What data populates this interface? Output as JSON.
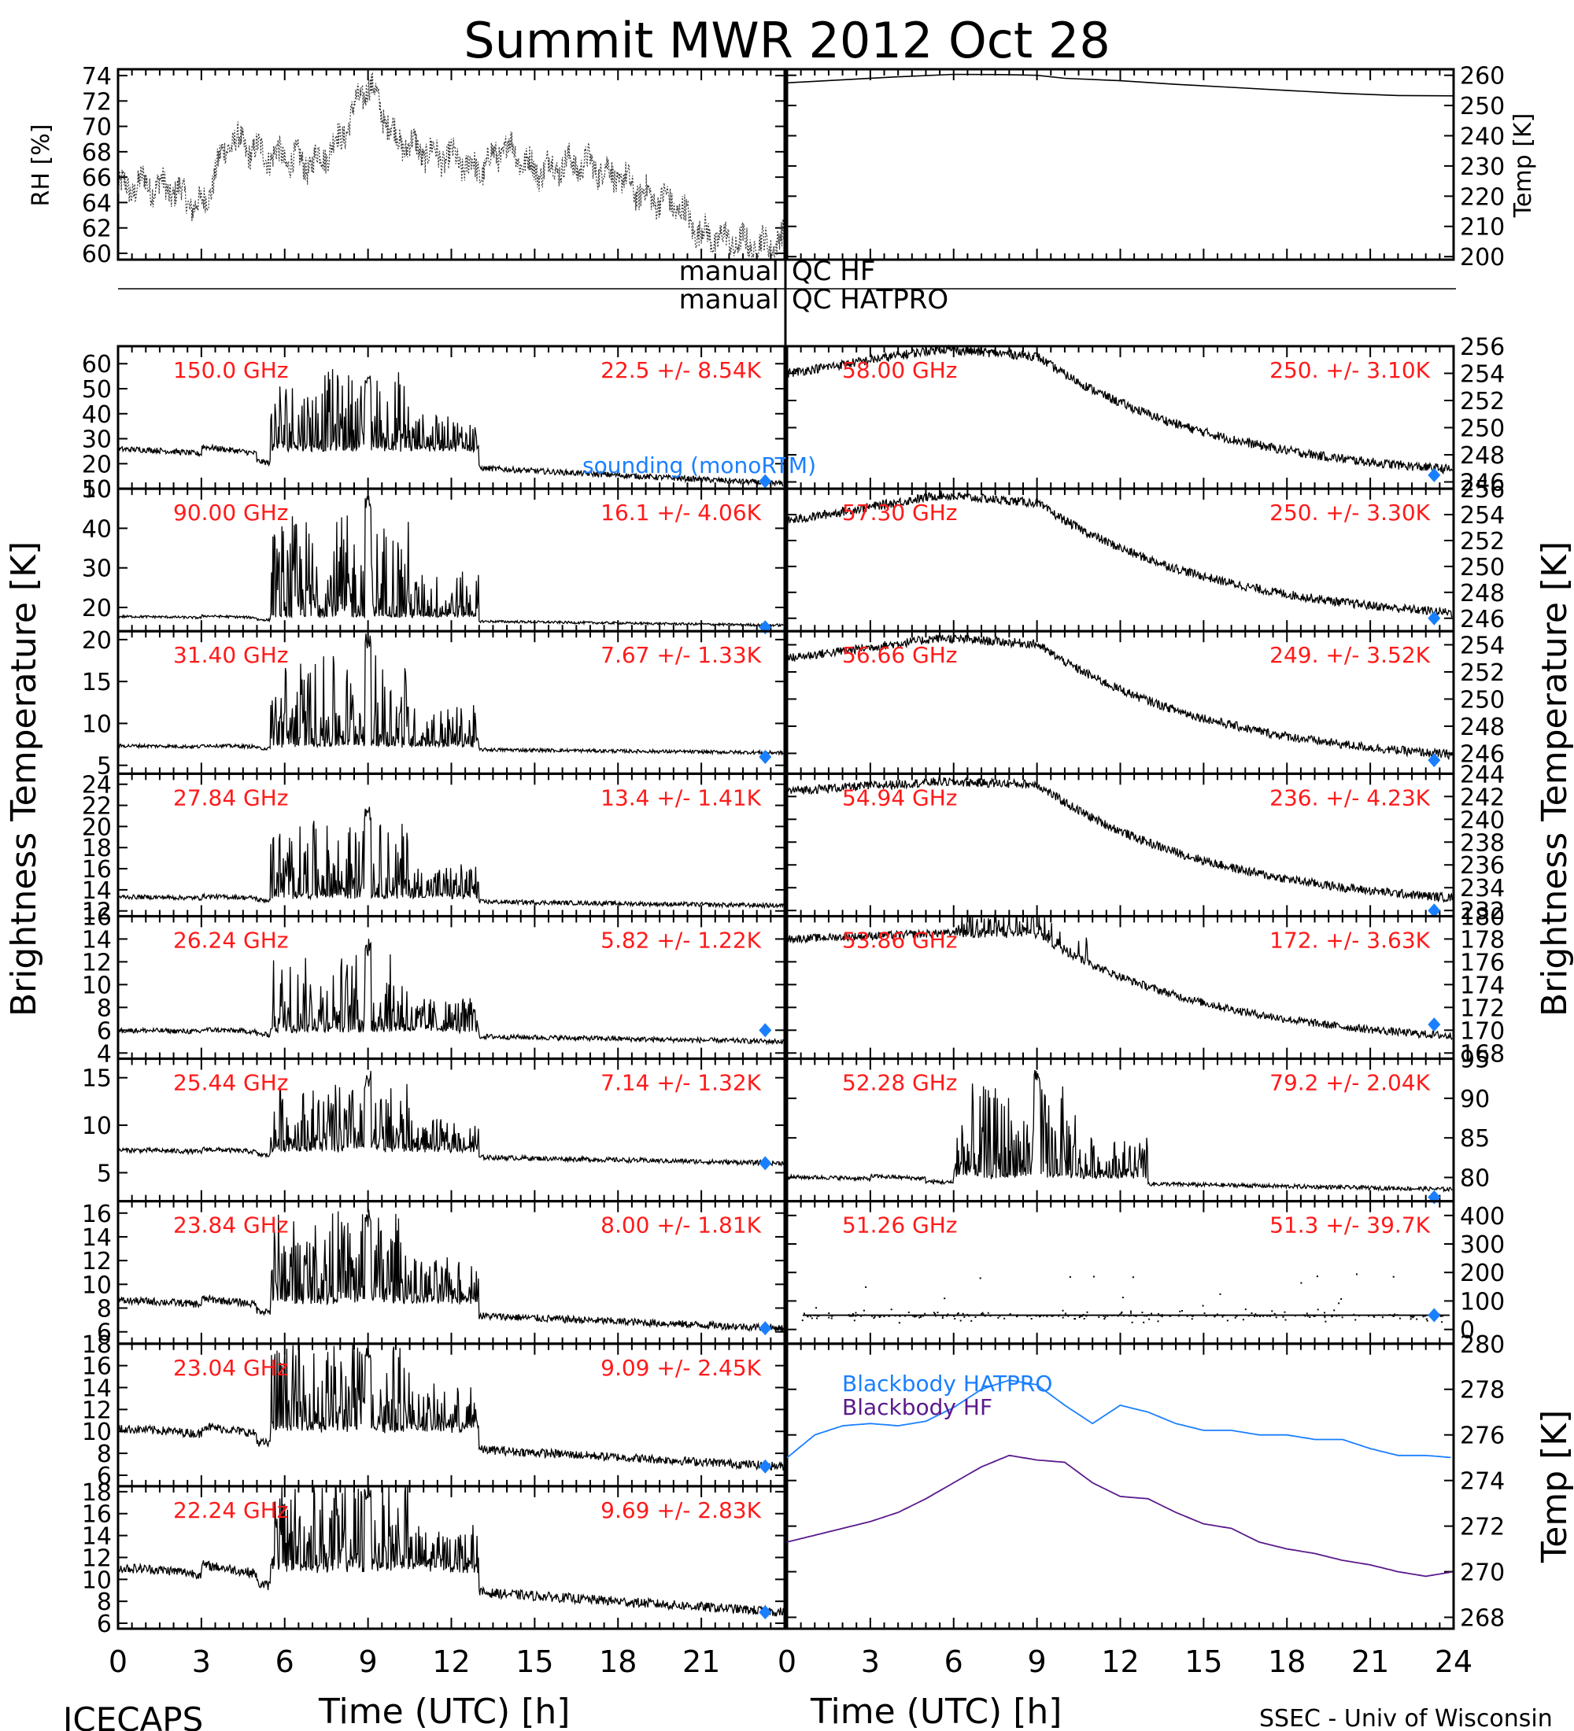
{
  "title": "Summit MWR 2012 Oct 28",
  "footer_left": "ICECAPS",
  "footer_right": "SSEC - Univ of Wisconsin",
  "qc_labels": [
    [
      "manual",
      "QC HF"
    ],
    [
      "manual",
      "QC HATPRO"
    ]
  ],
  "colors": {
    "label": "#ff1a1a",
    "sounding": "#1a7fff",
    "bb_hatpro": "#1a7fff",
    "bb_hf": "#5a1a8c",
    "trace": "#000000"
  },
  "chart_data": [
    {
      "type": "scatter",
      "panel": "rh",
      "ylabel": "RH [%]",
      "ylim": [
        59.5,
        74.5
      ],
      "yticks": [
        60,
        62,
        64,
        66,
        68,
        70,
        72,
        74
      ],
      "xlim": [
        0,
        24
      ],
      "series": [
        {
          "x": [
            0,
            1,
            2,
            3,
            4,
            5,
            6,
            7,
            8,
            9,
            10,
            11,
            12,
            13,
            14,
            15,
            16,
            17,
            18,
            19,
            20,
            21,
            22,
            23,
            24
          ],
          "y": [
            65,
            65.5,
            65,
            63.5,
            69,
            68,
            67.5,
            67,
            69,
            73.5,
            69,
            68,
            67.5,
            66.5,
            68.5,
            66.5,
            67,
            67,
            66,
            64.5,
            64,
            61.5,
            61,
            60.5,
            61
          ]
        }
      ]
    },
    {
      "type": "line",
      "panel": "temp",
      "ylabel": "Temp [K]",
      "ylim": [
        199,
        262
      ],
      "yticks": [
        200,
        210,
        220,
        230,
        240,
        250,
        260
      ],
      "xlim": [
        0,
        24
      ],
      "series": [
        {
          "x": [
            0,
            2,
            4,
            6,
            8,
            9,
            10,
            12,
            14,
            16,
            18,
            20,
            22,
            24
          ],
          "y": [
            257.5,
            258.5,
            259.5,
            260.3,
            260.2,
            260,
            259,
            258.2,
            257,
            256,
            255,
            254,
            253.3,
            253.2
          ]
        }
      ]
    },
    {
      "type": "line",
      "freq": "150.0 GHz",
      "stat": "22.5 +/-  8.54K",
      "ylim": [
        10,
        67
      ],
      "yticks": [
        10,
        20,
        30,
        40,
        50,
        60
      ],
      "profile": "wet",
      "base": 12,
      "amp": 25,
      "peak": 55,
      "sounding": 13,
      "annotation": "sounding (monoRTM)"
    },
    {
      "type": "line",
      "freq": "90.00 GHz",
      "stat": "16.1 +/-  4.06K",
      "ylim": [
        14,
        50
      ],
      "yticks": [
        20,
        30,
        40,
        50
      ],
      "profile": "wet",
      "base": 15.5,
      "amp": 4,
      "peak": 50,
      "sounding": 15
    },
    {
      "type": "line",
      "freq": "31.40 GHz",
      "stat": "7.67 +/- 1.33K",
      "ylim": [
        4,
        21
      ],
      "yticks": [
        5,
        10,
        15,
        20
      ],
      "profile": "wet",
      "base": 6.5,
      "amp": 1.5,
      "peak": 21,
      "sounding": 6
    },
    {
      "type": "line",
      "freq": "27.84 GHz",
      "stat": "13.4 +/- 1.41K",
      "ylim": [
        11.5,
        25
      ],
      "yticks": [
        12,
        14,
        16,
        18,
        20,
        22,
        24
      ],
      "profile": "wet",
      "base": 12.5,
      "amp": 1.5,
      "peak": 22,
      "sounding": null
    },
    {
      "type": "line",
      "freq": "26.24 GHz",
      "stat": "5.82 +/- 1.22K",
      "ylim": [
        3.5,
        16
      ],
      "yticks": [
        4,
        6,
        8,
        10,
        12,
        14,
        16
      ],
      "profile": "wet",
      "base": 5,
      "amp": 1.8,
      "peak": 14,
      "sounding": 6
    },
    {
      "type": "line",
      "freq": "25.44 GHz",
      "stat": "7.14 +/- 1.32K",
      "ylim": [
        2,
        17
      ],
      "yticks": [
        5,
        10,
        15
      ],
      "profile": "wet",
      "base": 6,
      "amp": 2.5,
      "peak": 15.5,
      "sounding": 6
    },
    {
      "type": "line",
      "freq": "23.84 GHz",
      "stat": "8.00 +/- 1.81K",
      "ylim": [
        5,
        17
      ],
      "yticks": [
        6,
        8,
        10,
        12,
        14,
        16
      ],
      "profile": "wet",
      "base": 6.3,
      "amp": 4.2,
      "peak": 16.5,
      "sounding": 6.3
    },
    {
      "type": "line",
      "freq": "23.04 GHz",
      "stat": "9.09 +/- 2.45K",
      "ylim": [
        5,
        18
      ],
      "yticks": [
        6,
        8,
        10,
        12,
        14,
        16,
        18
      ],
      "profile": "wet",
      "base": 6.8,
      "amp": 6.2,
      "peak": 18,
      "sounding": 6.8
    },
    {
      "type": "line",
      "freq": "22.24 GHz",
      "stat": "9.69 +/- 2.83K",
      "ylim": [
        5.5,
        18.5
      ],
      "yticks": [
        6,
        8,
        10,
        12,
        14,
        16,
        18
      ],
      "profile": "wet",
      "base": 7,
      "amp": 7.3,
      "peak": 18.5,
      "sounding": 7
    },
    {
      "type": "line",
      "freq": "58.00 GHz",
      "stat": "250. +/- 3.10K",
      "ylim": [
        245.5,
        256
      ],
      "yticks": [
        246,
        248,
        250,
        252,
        254,
        256
      ],
      "profile": "warm",
      "v0": 254,
      "vmax": 255.8,
      "v24": 246,
      "sounding": 246.5
    },
    {
      "type": "line",
      "freq": "57.30 GHz",
      "stat": "250. +/- 3.30K",
      "ylim": [
        245,
        256
      ],
      "yticks": [
        246,
        248,
        250,
        252,
        254,
        256
      ],
      "profile": "warm",
      "v0": 253.5,
      "vmax": 255.5,
      "v24": 245.5,
      "sounding": 246
    },
    {
      "type": "line",
      "freq": "56.66 GHz",
      "stat": "249. +/- 3.52K",
      "ylim": [
        244.5,
        255
      ],
      "yticks": [
        246,
        248,
        250,
        252,
        254
      ],
      "profile": "warm",
      "v0": 253,
      "vmax": 254.5,
      "v24": 245,
      "sounding": 245.5
    },
    {
      "type": "line",
      "freq": "54.94 GHz",
      "stat": "236. +/- 4.23K",
      "ylim": [
        231.5,
        244
      ],
      "yticks": [
        232,
        234,
        236,
        238,
        240,
        242,
        244
      ],
      "profile": "warm",
      "v0": 242.5,
      "vmax": 243.3,
      "v24": 232,
      "sounding": 232
    },
    {
      "type": "line",
      "freq": "53.86 GHz",
      "stat": "172. +/- 3.63K",
      "ylim": [
        167.5,
        180
      ],
      "yticks": [
        168,
        170,
        172,
        174,
        176,
        178,
        180
      ],
      "profile": "warmwet",
      "v0": 178,
      "vmax": 178.5,
      "v24": 168.5,
      "sounding": 170.5
    },
    {
      "type": "line",
      "freq": "52.28 GHz",
      "stat": "79.2 +/- 2.04K",
      "ylim": [
        77,
        95
      ],
      "yticks": [
        80,
        85,
        90,
        95
      ],
      "profile": "wet",
      "base": 78.5,
      "amp": 2.8,
      "peak": 94,
      "sounding": 77.5,
      "wet_start": 6
    },
    {
      "type": "scatter",
      "freq": "51.26 GHz",
      "stat": "51.3 +/- 39.7K",
      "ylim": [
        -50,
        450
      ],
      "yticks": [
        0,
        100,
        200,
        300,
        400
      ],
      "profile": "noise",
      "base": 50,
      "sounding": 50
    },
    {
      "type": "line",
      "panel": "blackbody",
      "ylabel": "Temp [K]",
      "ylim": [
        267.5,
        280
      ],
      "yticks": [
        268,
        270,
        272,
        274,
        276,
        278,
        280
      ],
      "xlim": [
        0,
        24
      ],
      "series": [
        {
          "name": "Blackbody HATPRO",
          "x": [
            0,
            1,
            2,
            3,
            4,
            5,
            6,
            7,
            8,
            9,
            10,
            11,
            12,
            13,
            14,
            15,
            16,
            17,
            18,
            19,
            20,
            21,
            22,
            23,
            24
          ],
          "y": [
            275,
            276,
            276.4,
            276.5,
            276.4,
            276.6,
            277.2,
            278,
            278.4,
            278.2,
            277.3,
            276.5,
            277.3,
            277,
            276.5,
            276.2,
            276.2,
            276,
            276,
            275.8,
            275.8,
            275.4,
            275.1,
            275.1,
            275
          ]
        },
        {
          "name": "Blackbody HF",
          "x": [
            0,
            1,
            2,
            3,
            4,
            5,
            6,
            7,
            8,
            9,
            10,
            11,
            12,
            13,
            14,
            15,
            16,
            17,
            18,
            19,
            20,
            21,
            22,
            23,
            24
          ],
          "y": [
            271.3,
            271.6,
            271.9,
            272.2,
            272.6,
            273.2,
            273.9,
            274.6,
            275.1,
            274.9,
            274.8,
            273.9,
            273.3,
            273.2,
            272.6,
            272.1,
            271.9,
            271.3,
            271,
            270.8,
            270.5,
            270.3,
            270,
            269.8,
            270
          ]
        }
      ]
    }
  ],
  "axes": {
    "left_label": "Brightness Temperature [K]",
    "right_label": "Brightness Temperature [K]",
    "x_label": "Time (UTC) [h]",
    "x_ticks": [
      "0",
      "3",
      "6",
      "9",
      "12",
      "15",
      "18",
      "21",
      "24"
    ],
    "x_ticks_left": [
      "0",
      "3",
      "6",
      "9",
      "12",
      "15",
      "18",
      "21"
    ]
  }
}
